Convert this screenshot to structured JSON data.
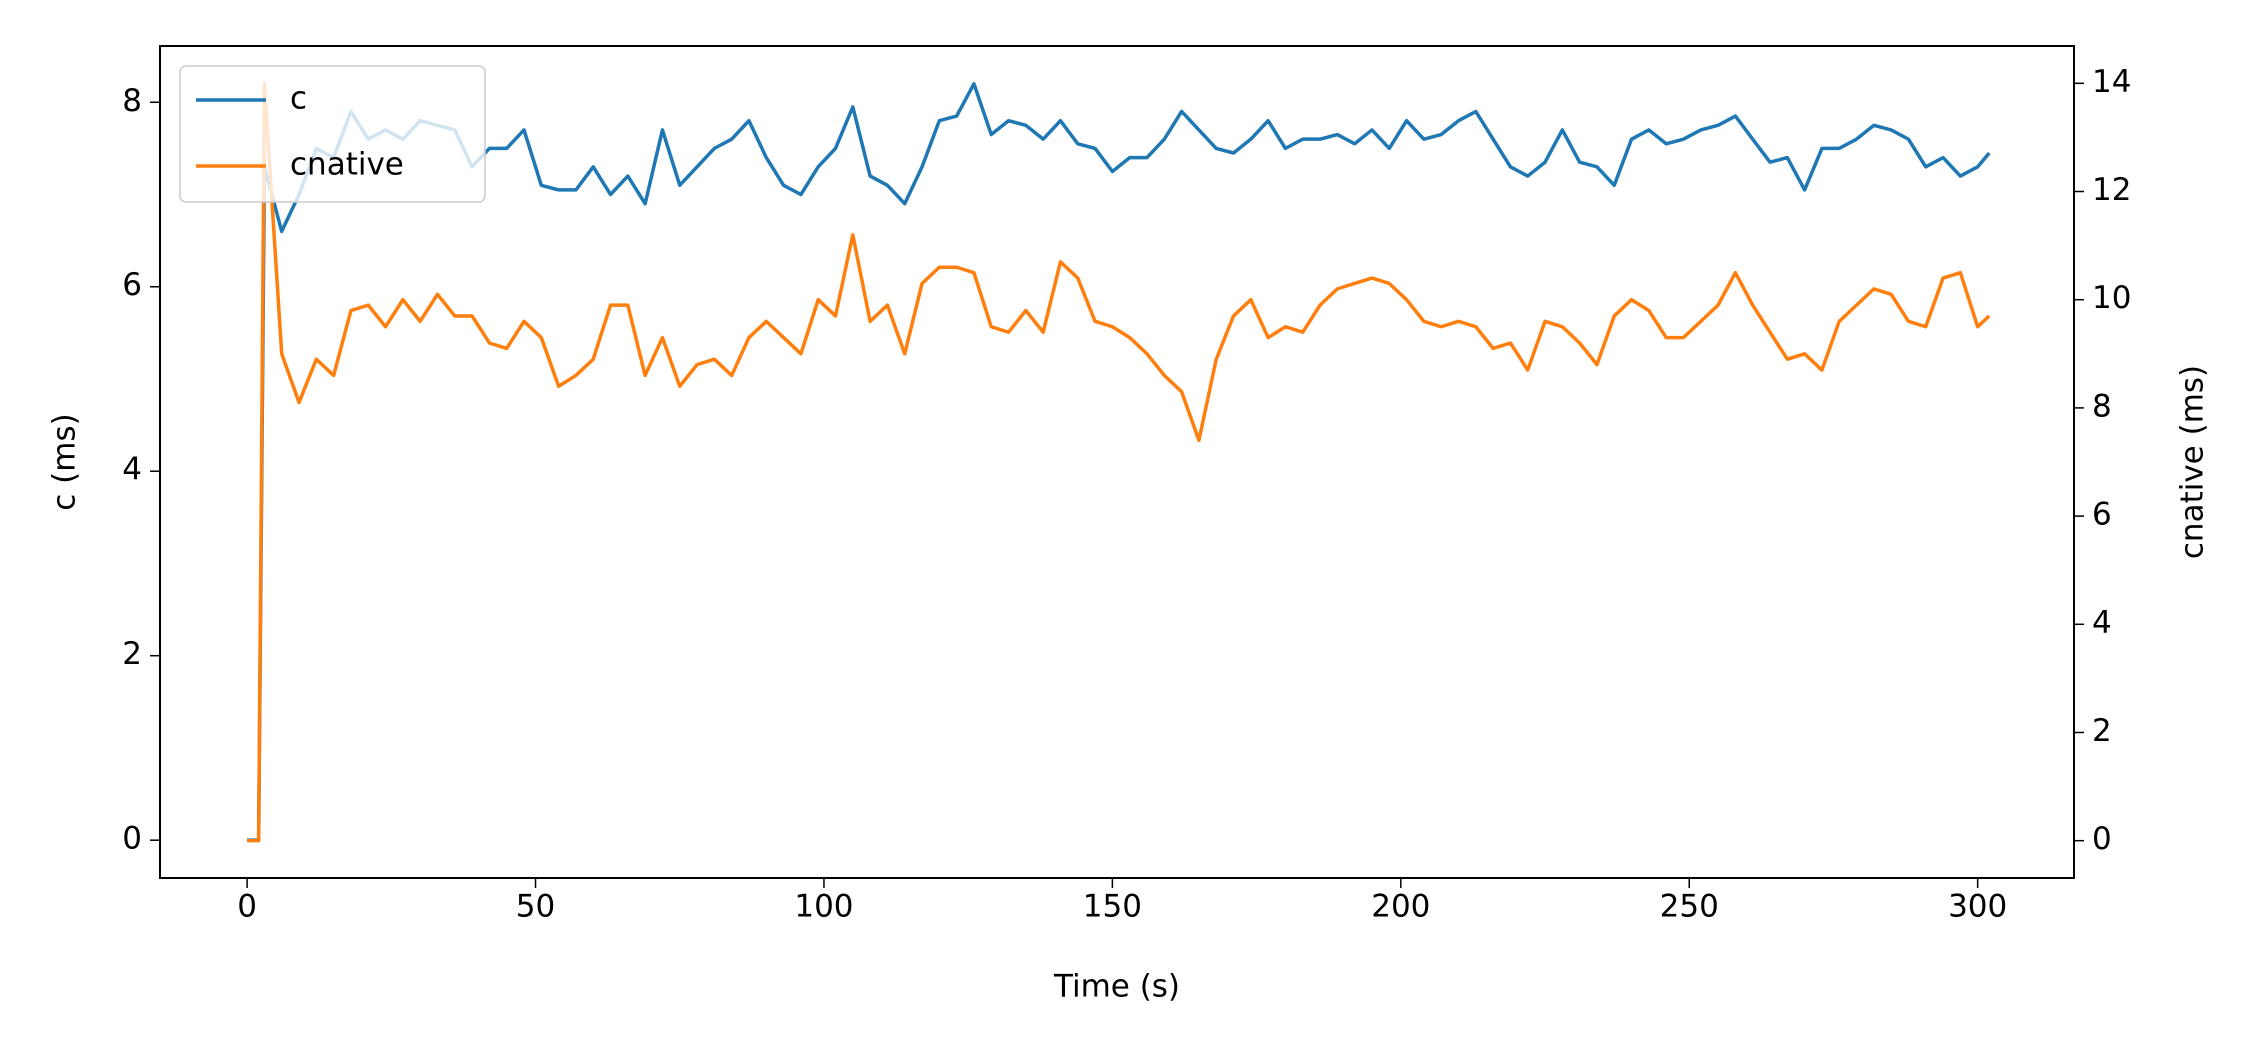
{
  "chart_data": {
    "type": "line",
    "xlabel": "Time (s)",
    "ylabel": "c (ms)",
    "y2label": "cnative (ms)",
    "x": [
      0,
      2,
      3,
      6,
      9,
      12,
      15,
      18,
      21,
      24,
      27,
      30,
      33,
      36,
      39,
      42,
      45,
      48,
      51,
      54,
      57,
      60,
      63,
      66,
      69,
      72,
      75,
      78,
      81,
      84,
      87,
      90,
      93,
      96,
      99,
      102,
      105,
      108,
      111,
      114,
      117,
      120,
      123,
      126,
      129,
      132,
      135,
      138,
      141,
      144,
      147,
      150,
      153,
      156,
      159,
      162,
      165,
      168,
      171,
      174,
      177,
      180,
      183,
      186,
      189,
      192,
      195,
      198,
      201,
      204,
      207,
      210,
      213,
      216,
      219,
      222,
      225,
      228,
      231,
      234,
      237,
      240,
      243,
      246,
      249,
      252,
      255,
      258,
      261,
      264,
      267,
      270,
      273,
      276,
      279,
      282,
      285,
      288,
      291,
      294,
      297,
      300,
      302
    ],
    "series": [
      {
        "name": "c",
        "color": "#1f77b4",
        "axis": "y",
        "values": [
          0,
          0,
          7.3,
          6.6,
          7.0,
          7.5,
          7.4,
          7.9,
          7.6,
          7.7,
          7.6,
          7.8,
          7.75,
          7.7,
          7.3,
          7.5,
          7.5,
          7.7,
          7.1,
          7.05,
          7.05,
          7.3,
          7.0,
          7.2,
          6.9,
          7.7,
          7.1,
          7.3,
          7.5,
          7.6,
          7.8,
          7.4,
          7.1,
          7.0,
          7.3,
          7.5,
          7.95,
          7.2,
          7.1,
          6.9,
          7.3,
          7.8,
          7.85,
          8.2,
          7.65,
          7.8,
          7.75,
          7.6,
          7.8,
          7.55,
          7.5,
          7.25,
          7.4,
          7.4,
          7.6,
          7.9,
          7.7,
          7.5,
          7.45,
          7.6,
          7.8,
          7.5,
          7.6,
          7.6,
          7.65,
          7.55,
          7.7,
          7.5,
          7.8,
          7.6,
          7.65,
          7.8,
          7.9,
          7.6,
          7.3,
          7.2,
          7.35,
          7.7,
          7.35,
          7.3,
          7.1,
          7.6,
          7.7,
          7.55,
          7.6,
          7.7,
          7.75,
          7.85,
          7.6,
          7.35,
          7.4,
          7.05,
          7.5,
          7.5,
          7.6,
          7.75,
          7.7,
          7.6,
          7.3,
          7.4,
          7.2,
          7.3,
          7.45
        ]
      },
      {
        "name": "cnative",
        "color": "#ff7f0e",
        "axis": "y2",
        "values": [
          0,
          0,
          14.0,
          9.0,
          8.1,
          8.9,
          8.6,
          9.8,
          9.9,
          9.5,
          10.0,
          9.6,
          10.1,
          9.7,
          9.7,
          9.2,
          9.1,
          9.6,
          9.3,
          8.4,
          8.6,
          8.9,
          9.9,
          9.9,
          8.6,
          9.3,
          8.4,
          8.8,
          8.9,
          8.6,
          9.3,
          9.6,
          9.3,
          9.0,
          10.0,
          9.7,
          11.2,
          9.6,
          9.9,
          9.0,
          10.3,
          10.6,
          10.6,
          10.5,
          9.5,
          9.4,
          9.8,
          9.4,
          10.7,
          10.4,
          9.6,
          9.5,
          9.3,
          9.0,
          8.6,
          8.3,
          7.4,
          8.9,
          9.7,
          10.0,
          9.3,
          9.5,
          9.4,
          9.9,
          10.2,
          10.3,
          10.4,
          10.3,
          10.0,
          9.6,
          9.5,
          9.6,
          9.5,
          9.1,
          9.2,
          8.7,
          9.6,
          9.5,
          9.2,
          8.8,
          9.7,
          10.0,
          9.8,
          9.3,
          9.3,
          9.6,
          9.9,
          10.5,
          9.9,
          9.4,
          8.9,
          9.0,
          8.7,
          9.6,
          9.9,
          10.2,
          10.1,
          9.6,
          9.5,
          10.4,
          10.5,
          9.5,
          9.7
        ]
      }
    ],
    "xlim": [
      -15.1,
      316.7
    ],
    "xticks": [
      0,
      50,
      100,
      150,
      200,
      250,
      300
    ],
    "ylim": [
      -0.41,
      8.61
    ],
    "yticks": [
      0,
      2,
      4,
      6,
      8
    ],
    "y2lim": [
      -0.69,
      14.69
    ],
    "y2ticks": [
      0,
      2,
      4,
      6,
      8,
      10,
      12,
      14
    ],
    "legend": "upper left"
  }
}
